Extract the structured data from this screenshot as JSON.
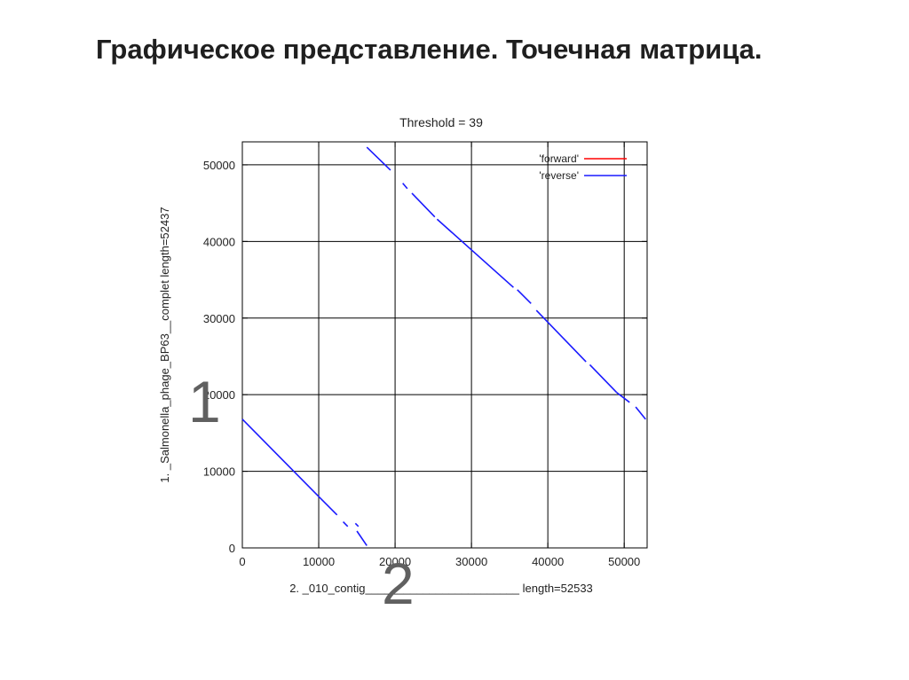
{
  "slide": {
    "title": "Графическое представление. Точечная матрица."
  },
  "chart_data": {
    "type": "scatter",
    "title": "Threshold = 39",
    "xlabel": "2. _010_contig________________________ length=52533",
    "ylabel": "1. _Salmonella_phage_BP63__complet length=52437",
    "xlim": [
      0,
      53000
    ],
    "ylim": [
      0,
      53000
    ],
    "x_ticks": [
      0,
      10000,
      20000,
      30000,
      40000,
      50000
    ],
    "y_ticks": [
      0,
      10000,
      20000,
      30000,
      40000,
      50000
    ],
    "x_tick_labels": [
      "0",
      "10000",
      "20000",
      "30000",
      "40000",
      "50000"
    ],
    "y_tick_labels": [
      "0",
      "10000",
      "20000",
      "30000",
      "40000",
      "50000"
    ],
    "grid": true,
    "legend_position": "top-right",
    "series": [
      {
        "name": "'forward'",
        "color": "#ff0000",
        "segments": []
      },
      {
        "name": "'reverse'",
        "color": "#1a1aff",
        "segments": [
          [
            [
              0,
              16800
            ],
            [
              10000,
              6700
            ]
          ],
          [
            [
              10000,
              6700
            ],
            [
              12400,
              4300
            ]
          ],
          [
            [
              13200,
              3400
            ],
            [
              13800,
              2800
            ]
          ],
          [
            [
              14800,
              3200
            ],
            [
              15200,
              2800
            ]
          ],
          [
            [
              15000,
              2200
            ],
            [
              16300,
              300
            ]
          ],
          [
            [
              16300,
              52300
            ],
            [
              19400,
              49300
            ]
          ],
          [
            [
              21000,
              47600
            ],
            [
              21600,
              46900
            ]
          ],
          [
            [
              22200,
              46300
            ],
            [
              25200,
              43200
            ]
          ],
          [
            [
              25500,
              42900
            ],
            [
              35500,
              34000
            ]
          ],
          [
            [
              36000,
              33700
            ],
            [
              37800,
              31900
            ]
          ],
          [
            [
              38500,
              31000
            ],
            [
              45000,
              24300
            ]
          ],
          [
            [
              45500,
              23900
            ],
            [
              49000,
              20300
            ]
          ],
          [
            [
              49000,
              20300
            ],
            [
              50700,
              19000
            ]
          ],
          [
            [
              51500,
              18400
            ],
            [
              52800,
              16800
            ]
          ]
        ]
      }
    ]
  },
  "overlay": {
    "digit_y": "1",
    "digit_x": "2"
  }
}
